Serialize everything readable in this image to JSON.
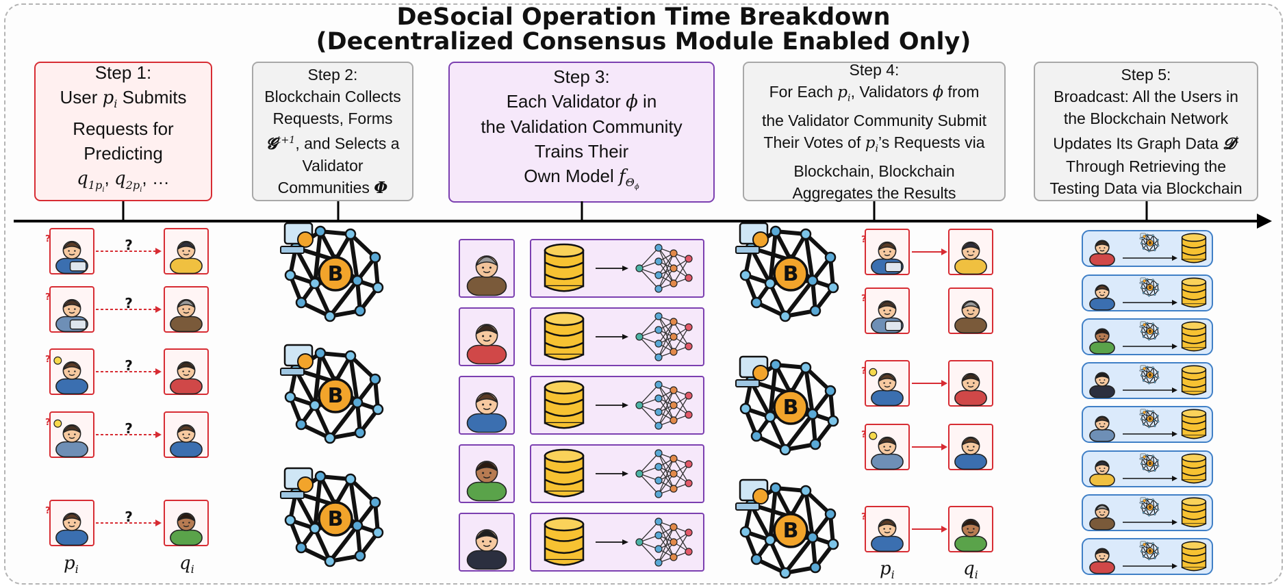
{
  "title": {
    "line1": "DeSocial Operation Time Breakdown",
    "line2": "(Decentralized Consensus Module Enabled Only)"
  },
  "steps": {
    "step1": {
      "label": "Step 1:",
      "l2a": "User ",
      "l2var": "p",
      "l2sub": "i",
      "l2b": " Submits",
      "l3": "Requests for",
      "l4": "Predicting",
      "l5var1": "q",
      "l5sub1": "1",
      "l5subsub1": "p",
      "l5subsubi1": "i",
      "l5sep": ", ",
      "l5var2": "q",
      "l5sub2": "2",
      "l5subsub2": "p",
      "l5subsubi2": "i",
      "l5end": ", …"
    },
    "step2": {
      "label": "Step 2:",
      "l2": "Blockchain Collects",
      "l3a": "Requests, Forms",
      "l4var": "𝓖",
      "l4sup": "t+1",
      "l4b": ", and Selects a",
      "l5": "Validator",
      "l6a": "Communities ",
      "l6var": "Φ"
    },
    "step3": {
      "label": "Step 3:",
      "l2a": "Each Validator ",
      "l2var": "ϕ",
      "l2b": " in",
      "l3": "the Validation Community",
      "l4": "Trains Their",
      "l5a": "Own Model ",
      "l5var": "f",
      "l5sub": "Θ",
      "l5subsub": "ϕ"
    },
    "step4": {
      "label": "Step 4:",
      "l2a": "For Each  ",
      "l2var": "p",
      "l2sub": "i",
      "l2b": ",  Validators ",
      "l2var2": "ϕ",
      "l2c": " from",
      "l3": "the Validator Community Submit",
      "l4a": "Their Votes of ",
      "l4var": "p",
      "l4sub": "i",
      "l4b": "’s Requests via",
      "l5": "Blockchain, Blockchain",
      "l6": "Aggregates the Results"
    },
    "step5": {
      "label": "Step 5:",
      "l2": "Broadcast: All the Users in",
      "l3": "the Blockchain Network",
      "l4a": "Updates Its Graph Data ",
      "l4var": "𝓓",
      "l4sup": "t",
      "l5": "Through Retrieving the",
      "l6": "Testing Data via Blockchain"
    }
  },
  "labels": {
    "p": "p",
    "p_sub": "i",
    "q": "q",
    "q_sub": "i",
    "unknown_mark": "?",
    "coin_symbol": "B"
  },
  "icons": {
    "requester": "requester-person-icon",
    "target": "target-person-icon",
    "blockchain": "blockchain-network-icon",
    "validator": "validator-person-icon",
    "database": "database-icon",
    "model": "neural-network-icon"
  },
  "colors": {
    "step1_border": "#d72c33",
    "step3_border": "#7b3fb0",
    "step5_row_fill": "#dbeafb",
    "coin": "#f2a42b",
    "db": "#f7c232"
  }
}
